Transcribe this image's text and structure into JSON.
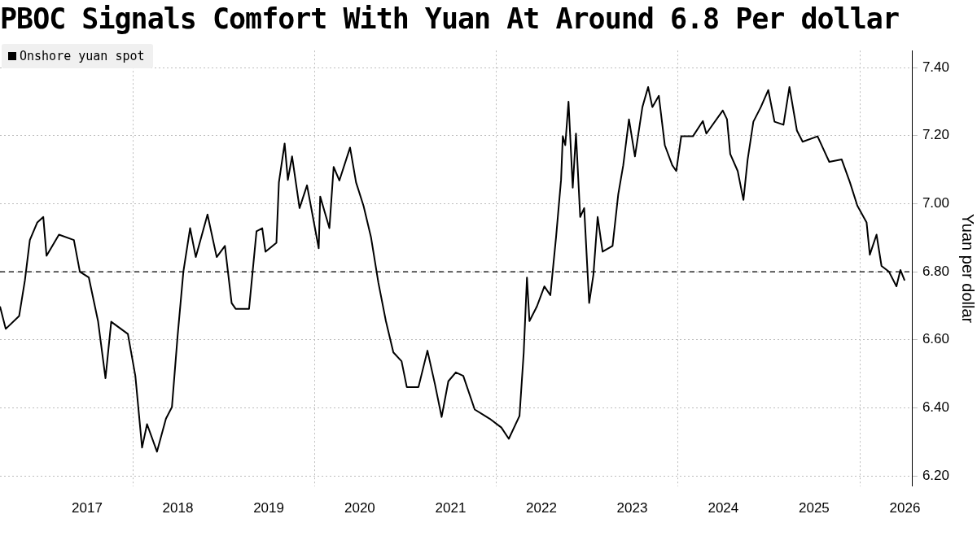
{
  "chart_data": {
    "type": "line",
    "title": "PBOC Signals Comfort With Yuan At Around 6.8 Per dollar",
    "ylabel": "Yuan per dollar",
    "x": [
      "2016-07-16",
      "2016-08-08",
      "2016-10-01",
      "2016-10-24",
      "2016-11-13",
      "2016-12-13",
      "2017-01-06",
      "2017-01-19",
      "2017-03-10",
      "2017-05-09",
      "2017-06-02",
      "2017-07-08",
      "2017-08-14",
      "2017-09-13",
      "2017-10-06",
      "2017-12-12",
      "2018-01-11",
      "2018-02-07",
      "2018-02-27",
      "2018-04-08",
      "2018-05-14",
      "2018-06-07",
      "2018-06-30",
      "2018-07-23",
      "2018-08-19",
      "2018-09-11",
      "2018-10-28",
      "2018-12-04",
      "2019-01-06",
      "2019-02-02",
      "2019-02-18",
      "2019-04-13",
      "2019-05-13",
      "2019-06-05",
      "2019-06-18",
      "2019-08-01",
      "2019-08-11",
      "2019-09-03",
      "2019-09-16",
      "2019-10-03",
      "2019-11-02",
      "2019-12-02",
      "2020-01-18",
      "2020-01-24",
      "2020-03-01",
      "2020-03-18",
      "2020-04-10",
      "2020-05-23",
      "2020-06-16",
      "2020-07-16",
      "2020-08-15",
      "2020-09-14",
      "2020-10-14",
      "2020-11-13",
      "2020-12-16",
      "2021-01-06",
      "2021-02-22",
      "2021-03-30",
      "2021-04-29",
      "2021-05-26",
      "2021-06-22",
      "2021-07-22",
      "2021-08-21",
      "2021-10-06",
      "2021-12-05",
      "2022-01-21",
      "2022-02-20",
      "2022-04-04",
      "2022-04-21",
      "2022-05-04",
      "2022-05-14",
      "2022-06-13",
      "2022-07-13",
      "2022-08-06",
      "2022-08-29",
      "2022-09-18",
      "2022-09-25",
      "2022-10-05",
      "2022-10-18",
      "2022-11-04",
      "2022-11-17",
      "2022-12-04",
      "2022-12-20",
      "2023-01-09",
      "2023-01-26",
      "2023-02-12",
      "2023-03-04",
      "2023-04-13",
      "2023-05-06",
      "2023-05-26",
      "2023-06-18",
      "2023-07-12",
      "2023-08-11",
      "2023-09-03",
      "2023-09-20",
      "2023-10-16",
      "2023-11-09",
      "2023-12-09",
      "2023-12-25",
      "2024-01-14",
      "2024-03-01",
      "2024-04-10",
      "2024-04-24",
      "2024-06-29",
      "2024-07-16",
      "2024-07-29",
      "2024-08-28",
      "2024-09-20",
      "2024-10-07",
      "2024-10-30",
      "2024-11-29",
      "2024-12-29",
      "2025-01-23",
      "2025-02-28",
      "2025-03-24",
      "2025-04-23",
      "2025-05-16",
      "2025-07-15",
      "2025-08-31",
      "2025-10-20",
      "2025-11-22",
      "2025-12-22",
      "2026-01-28",
      "2026-02-10",
      "2026-03-09",
      "2026-03-29",
      "2026-04-28",
      "2026-05-28",
      "2026-06-13",
      "2026-06-30"
    ],
    "series": [
      {
        "name": "Onshore yuan spot",
        "color": "#000000",
        "values": [
          6.698,
          6.632,
          6.67,
          6.774,
          6.893,
          6.945,
          6.961,
          6.847,
          6.909,
          6.893,
          6.8,
          6.783,
          6.655,
          6.487,
          6.653,
          6.617,
          6.494,
          6.283,
          6.352,
          6.271,
          6.368,
          6.402,
          6.613,
          6.8,
          6.928,
          6.843,
          6.968,
          6.843,
          6.876,
          6.708,
          6.691,
          6.691,
          6.919,
          6.928,
          6.859,
          6.885,
          7.063,
          7.177,
          7.07,
          7.139,
          6.987,
          7.054,
          6.869,
          7.021,
          6.928,
          7.108,
          7.068,
          7.165,
          7.063,
          6.994,
          6.902,
          6.767,
          6.655,
          6.563,
          6.537,
          6.461,
          6.461,
          6.568,
          6.47,
          6.373,
          6.478,
          6.504,
          6.494,
          6.395,
          6.368,
          6.342,
          6.309,
          6.376,
          6.563,
          6.783,
          6.655,
          6.698,
          6.757,
          6.731,
          6.902,
          7.07,
          7.198,
          7.172,
          7.3,
          7.047,
          7.206,
          6.961,
          6.987,
          6.708,
          6.791,
          6.961,
          6.859,
          6.876,
          7.028,
          7.113,
          7.248,
          7.139,
          7.284,
          7.343,
          7.284,
          7.317,
          7.172,
          7.113,
          7.096,
          7.198,
          7.198,
          7.243,
          7.206,
          7.274,
          7.248,
          7.146,
          7.096,
          7.011,
          7.13,
          7.241,
          7.284,
          7.334,
          7.241,
          7.232,
          7.343,
          7.215,
          7.182,
          7.198,
          7.123,
          7.13,
          7.063,
          6.994,
          6.945,
          6.85,
          6.909,
          6.817,
          6.8,
          6.757,
          6.805,
          6.774
        ]
      }
    ],
    "xlim": [
      "2016-07-16",
      "2026-08-01"
    ],
    "xticks": [
      {
        "value": "2017-07-01",
        "label": "2017"
      },
      {
        "value": "2018-01-01",
        "label": null
      },
      {
        "value": "2018-07-01",
        "label": "2018"
      },
      {
        "value": "2019-07-01",
        "label": "2019"
      },
      {
        "value": "2020-01-01",
        "label": null
      },
      {
        "value": "2020-07-01",
        "label": "2020"
      },
      {
        "value": "2021-07-01",
        "label": "2021"
      },
      {
        "value": "2022-01-01",
        "label": null
      },
      {
        "value": "2022-07-01",
        "label": "2022"
      },
      {
        "value": "2023-07-01",
        "label": "2023"
      },
      {
        "value": "2024-01-01",
        "label": null
      },
      {
        "value": "2024-07-01",
        "label": "2024"
      },
      {
        "value": "2025-07-01",
        "label": "2025"
      },
      {
        "value": "2026-01-01",
        "label": null
      },
      {
        "value": "2026-07-01",
        "label": "2026"
      }
    ],
    "ylim": [
      6.17,
      7.45
    ],
    "yticks": [
      {
        "value": 6.2,
        "label": "6.20"
      },
      {
        "value": 6.4,
        "label": "6.40"
      },
      {
        "value": 6.6,
        "label": "6.60"
      },
      {
        "value": 6.8,
        "label": "6.80"
      },
      {
        "value": 7.0,
        "label": "7.00"
      },
      {
        "value": 7.2,
        "label": "7.20"
      },
      {
        "value": 7.4,
        "label": "7.40"
      }
    ],
    "ref_lines": [
      {
        "axis": "y",
        "value": 6.8,
        "color": "#000000",
        "line_style": "dashed"
      }
    ],
    "grid": true,
    "legend": "top left",
    "marker": "none",
    "line_style": "solid"
  }
}
